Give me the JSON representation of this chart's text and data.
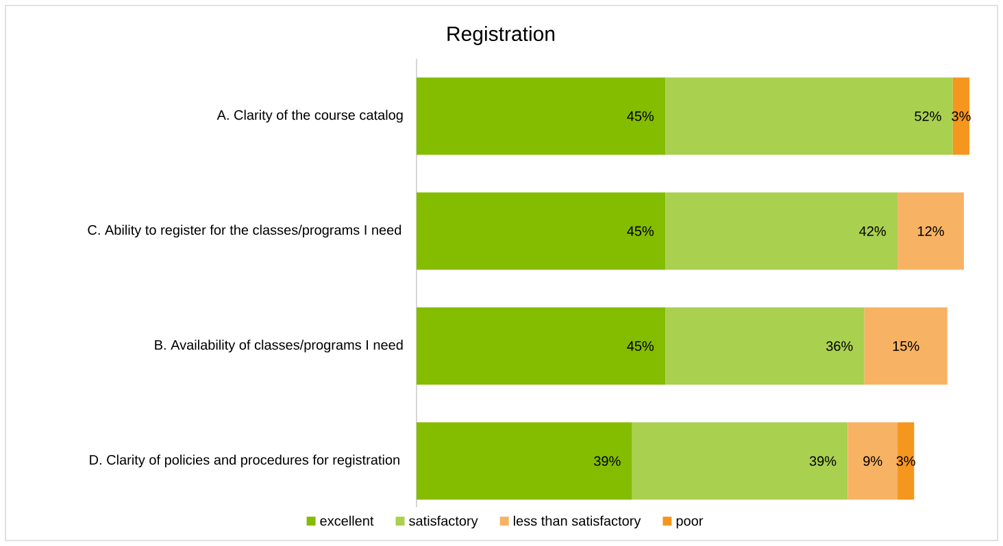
{
  "chart_data": {
    "type": "bar",
    "orientation": "horizontal",
    "stacked": true,
    "title": "Registration",
    "categories": [
      "A.  Clarity of the course catalog",
      "C.  Ability to register for the classes/programs I need",
      "B.  Availability of classes/programs I need",
      "D.  Clarity of policies and procedures for registration"
    ],
    "series": [
      {
        "name": "excellent",
        "color": "#84bc00",
        "values": [
          45,
          45,
          45,
          39
        ],
        "value_labels": [
          "45%",
          "45%",
          "45%",
          "39%"
        ]
      },
      {
        "name": "satisfactory",
        "color": "#a9d04f",
        "values": [
          52,
          42,
          36,
          39
        ],
        "value_labels": [
          "52%",
          "42%",
          "36%",
          "39%"
        ]
      },
      {
        "name": "less than satisfactory",
        "color": "#f8b264",
        "values": [
          null,
          12,
          15,
          9
        ],
        "value_labels": [
          null,
          "12%",
          "15%",
          "9%"
        ]
      },
      {
        "name": "poor",
        "color": "#f5961e",
        "values": [
          3,
          null,
          null,
          3
        ],
        "value_labels": [
          "3%",
          null,
          null,
          "3%"
        ]
      }
    ],
    "xlim": [
      0,
      100
    ],
    "tick_labels": "y",
    "legend": "bottom"
  }
}
